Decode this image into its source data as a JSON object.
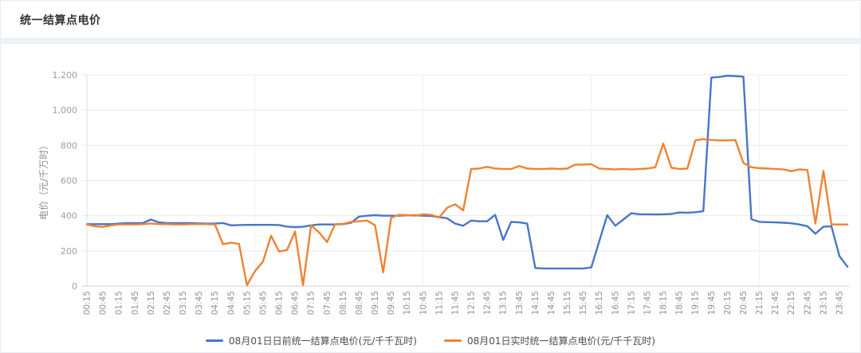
{
  "header": {
    "title": "统一结算点电价"
  },
  "chart_data": {
    "type": "line",
    "title": "统一结算点电价",
    "ylabel": "电价（元/千万时）",
    "ytick_labels": [
      "0",
      "200",
      "400",
      "600",
      "800",
      "1,000",
      "1,200"
    ],
    "ylim": [
      0,
      1200
    ],
    "grid": "horizontal",
    "legend_position": "bottom-center",
    "x": [
      "00:15",
      "00:30",
      "00:45",
      "01:00",
      "01:15",
      "01:30",
      "01:45",
      "02:00",
      "02:15",
      "02:30",
      "02:45",
      "03:00",
      "03:15",
      "03:30",
      "03:45",
      "04:00",
      "04:15",
      "04:30",
      "04:45",
      "05:00",
      "05:15",
      "05:30",
      "05:45",
      "06:00",
      "06:15",
      "06:30",
      "06:45",
      "07:00",
      "07:15",
      "07:30",
      "07:45",
      "08:00",
      "08:15",
      "08:30",
      "08:45",
      "09:00",
      "09:15",
      "09:30",
      "09:45",
      "10:00",
      "10:15",
      "10:30",
      "10:45",
      "11:00",
      "11:15",
      "11:30",
      "11:45",
      "12:00",
      "12:15",
      "12:30",
      "12:45",
      "13:00",
      "13:15",
      "13:30",
      "13:45",
      "14:00",
      "14:15",
      "14:30",
      "14:45",
      "15:00",
      "15:15",
      "15:30",
      "15:45",
      "16:00",
      "16:15",
      "16:30",
      "16:45",
      "17:00",
      "17:15",
      "17:30",
      "17:45",
      "18:00",
      "18:15",
      "18:30",
      "18:45",
      "19:00",
      "19:15",
      "19:30",
      "19:45",
      "20:00",
      "20:15",
      "20:30",
      "20:45",
      "21:00",
      "21:15",
      "21:30",
      "21:45",
      "22:00",
      "22:15",
      "22:30",
      "22:45",
      "23:00",
      "23:15",
      "23:30",
      "23:45",
      "24:00"
    ],
    "xtick_every": 2,
    "series": [
      {
        "name": "08月01日日前统一结算点电价(元/千千瓦时)",
        "color": "#4876c9",
        "values": [
          352,
          352,
          352,
          352,
          355,
          358,
          358,
          358,
          378,
          362,
          358,
          358,
          358,
          358,
          356,
          355,
          355,
          358,
          345,
          347,
          348,
          348,
          348,
          348,
          347,
          338,
          335,
          337,
          345,
          350,
          350,
          350,
          352,
          360,
          395,
          400,
          403,
          400,
          400,
          400,
          402,
          402,
          400,
          398,
          392,
          385,
          355,
          343,
          372,
          368,
          368,
          405,
          262,
          365,
          362,
          355,
          103,
          100,
          100,
          100,
          100,
          100,
          100,
          106,
          255,
          403,
          343,
          378,
          414,
          408,
          408,
          407,
          408,
          410,
          418,
          417,
          420,
          425,
          1185,
          1188,
          1195,
          1193,
          1190,
          380,
          365,
          363,
          362,
          360,
          357,
          350,
          340,
          297,
          338,
          340,
          170,
          110
        ]
      },
      {
        "name": "08月01日实时统一结算点电价(元/千千瓦时)",
        "color": "#f08232",
        "values": [
          350,
          340,
          336,
          345,
          350,
          350,
          350,
          352,
          356,
          352,
          352,
          350,
          350,
          352,
          352,
          352,
          350,
          238,
          247,
          240,
          5,
          85,
          140,
          286,
          196,
          205,
          310,
          5,
          345,
          305,
          250,
          352,
          353,
          365,
          368,
          372,
          345,
          78,
          388,
          405,
          403,
          400,
          408,
          405,
          390,
          445,
          465,
          430,
          665,
          668,
          678,
          668,
          665,
          665,
          682,
          668,
          665,
          665,
          668,
          665,
          668,
          690,
          690,
          693,
          668,
          665,
          663,
          665,
          663,
          665,
          668,
          675,
          810,
          673,
          665,
          668,
          828,
          835,
          830,
          828,
          828,
          830,
          700,
          675,
          670,
          668,
          665,
          663,
          653,
          663,
          660,
          355,
          655,
          350,
          350,
          350
        ]
      }
    ]
  }
}
